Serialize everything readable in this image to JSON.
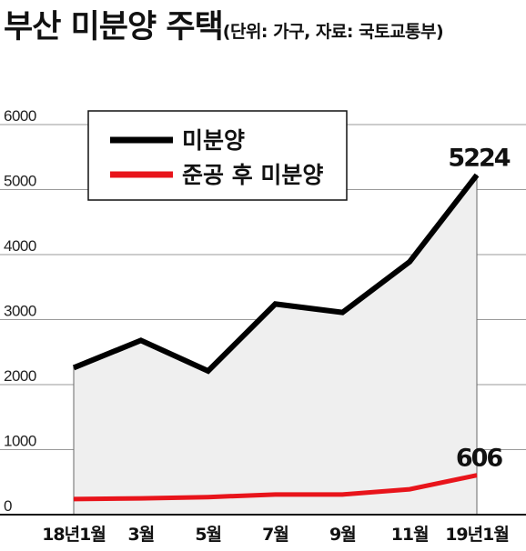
{
  "chart_data": {
    "type": "line",
    "title": "부산 미분양 주택",
    "subtitle": "(단위: 가구,  자료: 국토교통부)",
    "categories": [
      "18년1월",
      "3월",
      "5월",
      "7월",
      "9월",
      "11월",
      "19년1월"
    ],
    "series": [
      {
        "name": "미분양",
        "color": "#000000",
        "values": [
          2260,
          2680,
          2210,
          3240,
          3110,
          3890,
          5224
        ],
        "end_label": "5224"
      },
      {
        "name": "준공 후 미분양",
        "color": "#e8141b",
        "values": [
          240,
          250,
          270,
          310,
          310,
          390,
          606
        ],
        "end_label": "606"
      }
    ],
    "ylim": [
      0,
      6000
    ],
    "yticks": [
      "0",
      "1000",
      "2000",
      "3000",
      "4000",
      "5000",
      "6000"
    ],
    "grid": true,
    "legend_position": "top-left",
    "area_fill_color": "#efefef"
  }
}
